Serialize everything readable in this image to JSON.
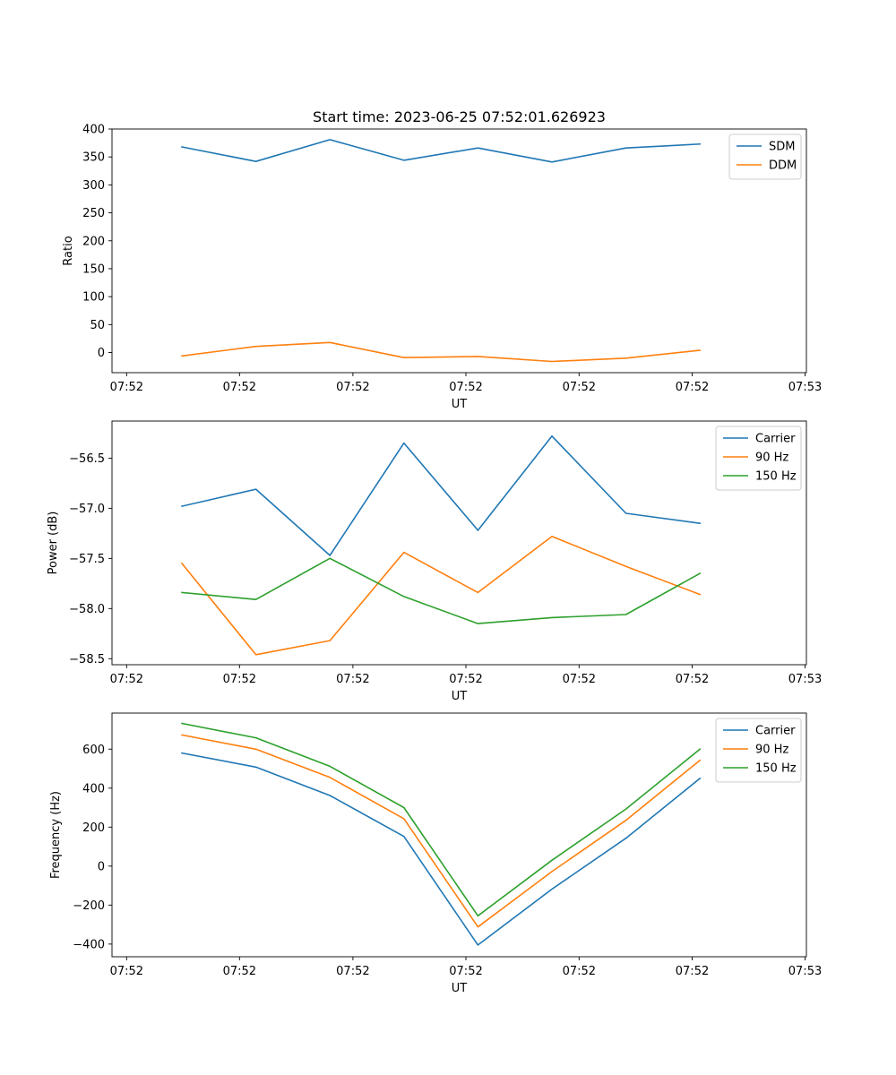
{
  "figure": {
    "title": "Start time: 2023-06-25 07:52:01.626923"
  },
  "chart_data": [
    {
      "type": "line",
      "xlabel": "UT",
      "ylabel": "Ratio",
      "x_tick_labels": [
        "07:52",
        "07:52",
        "07:52",
        "07:52",
        "07:52",
        "07:52",
        "07:53"
      ],
      "y_ticks": [
        0,
        50,
        100,
        150,
        200,
        250,
        300,
        350,
        400
      ],
      "ylim": [
        -36,
        400
      ],
      "legend_position": "upper right",
      "series": [
        {
          "name": "SDM",
          "color": "#1f77b4",
          "values": [
            368,
            342,
            381,
            344,
            366,
            341,
            366,
            373
          ]
        },
        {
          "name": "DDM",
          "color": "#ff7f0e",
          "values": [
            -6,
            11,
            18,
            -9,
            -7,
            -16,
            -10,
            4
          ]
        }
      ]
    },
    {
      "type": "line",
      "xlabel": "UT",
      "ylabel": "Power (dB)",
      "x_tick_labels": [
        "07:52",
        "07:52",
        "07:52",
        "07:52",
        "07:52",
        "07:52",
        "07:53"
      ],
      "y_ticks": [
        -58.5,
        -58.0,
        -57.5,
        -57.0,
        -56.5
      ],
      "y_tick_labels": [
        "−58.5",
        "−58.0",
        "−57.5",
        "−57.0",
        "−56.5"
      ],
      "ylim": [
        -58.56,
        -56.13
      ],
      "legend_position": "upper right",
      "series": [
        {
          "name": "Carrier",
          "color": "#1f77b4",
          "values": [
            -56.98,
            -56.81,
            -57.47,
            -56.35,
            -57.22,
            -56.28,
            -57.05,
            -57.15
          ]
        },
        {
          "name": "90 Hz",
          "color": "#ff7f0e",
          "values": [
            -57.55,
            -58.46,
            -58.32,
            -57.44,
            -57.84,
            -57.28,
            -57.58,
            -57.86
          ]
        },
        {
          "name": "150 Hz",
          "color": "#2ca02c",
          "values": [
            -57.84,
            -57.91,
            -57.5,
            -57.88,
            -58.15,
            -58.09,
            -58.06,
            -57.65
          ]
        }
      ]
    },
    {
      "type": "line",
      "xlabel": "UT",
      "ylabel": "Frequency (Hz)",
      "x_tick_labels": [
        "07:52",
        "07:52",
        "07:52",
        "07:52",
        "07:52",
        "07:52",
        "07:53"
      ],
      "y_ticks": [
        -400,
        -200,
        0,
        200,
        400,
        600
      ],
      "y_tick_labels": [
        "−400",
        "−200",
        "0",
        "200",
        "400",
        "600"
      ],
      "ylim": [
        -465,
        785
      ],
      "legend_position": "upper right",
      "series": [
        {
          "name": "Carrier",
          "color": "#1f77b4",
          "values": [
            580,
            508,
            362,
            152,
            -405,
            -118,
            143,
            450
          ]
        },
        {
          "name": "90 Hz",
          "color": "#ff7f0e",
          "values": [
            673,
            600,
            455,
            243,
            -312,
            -28,
            235,
            543
          ]
        },
        {
          "name": "150 Hz",
          "color": "#2ca02c",
          "values": [
            732,
            658,
            512,
            300,
            -255,
            30,
            293,
            600
          ]
        }
      ]
    }
  ]
}
